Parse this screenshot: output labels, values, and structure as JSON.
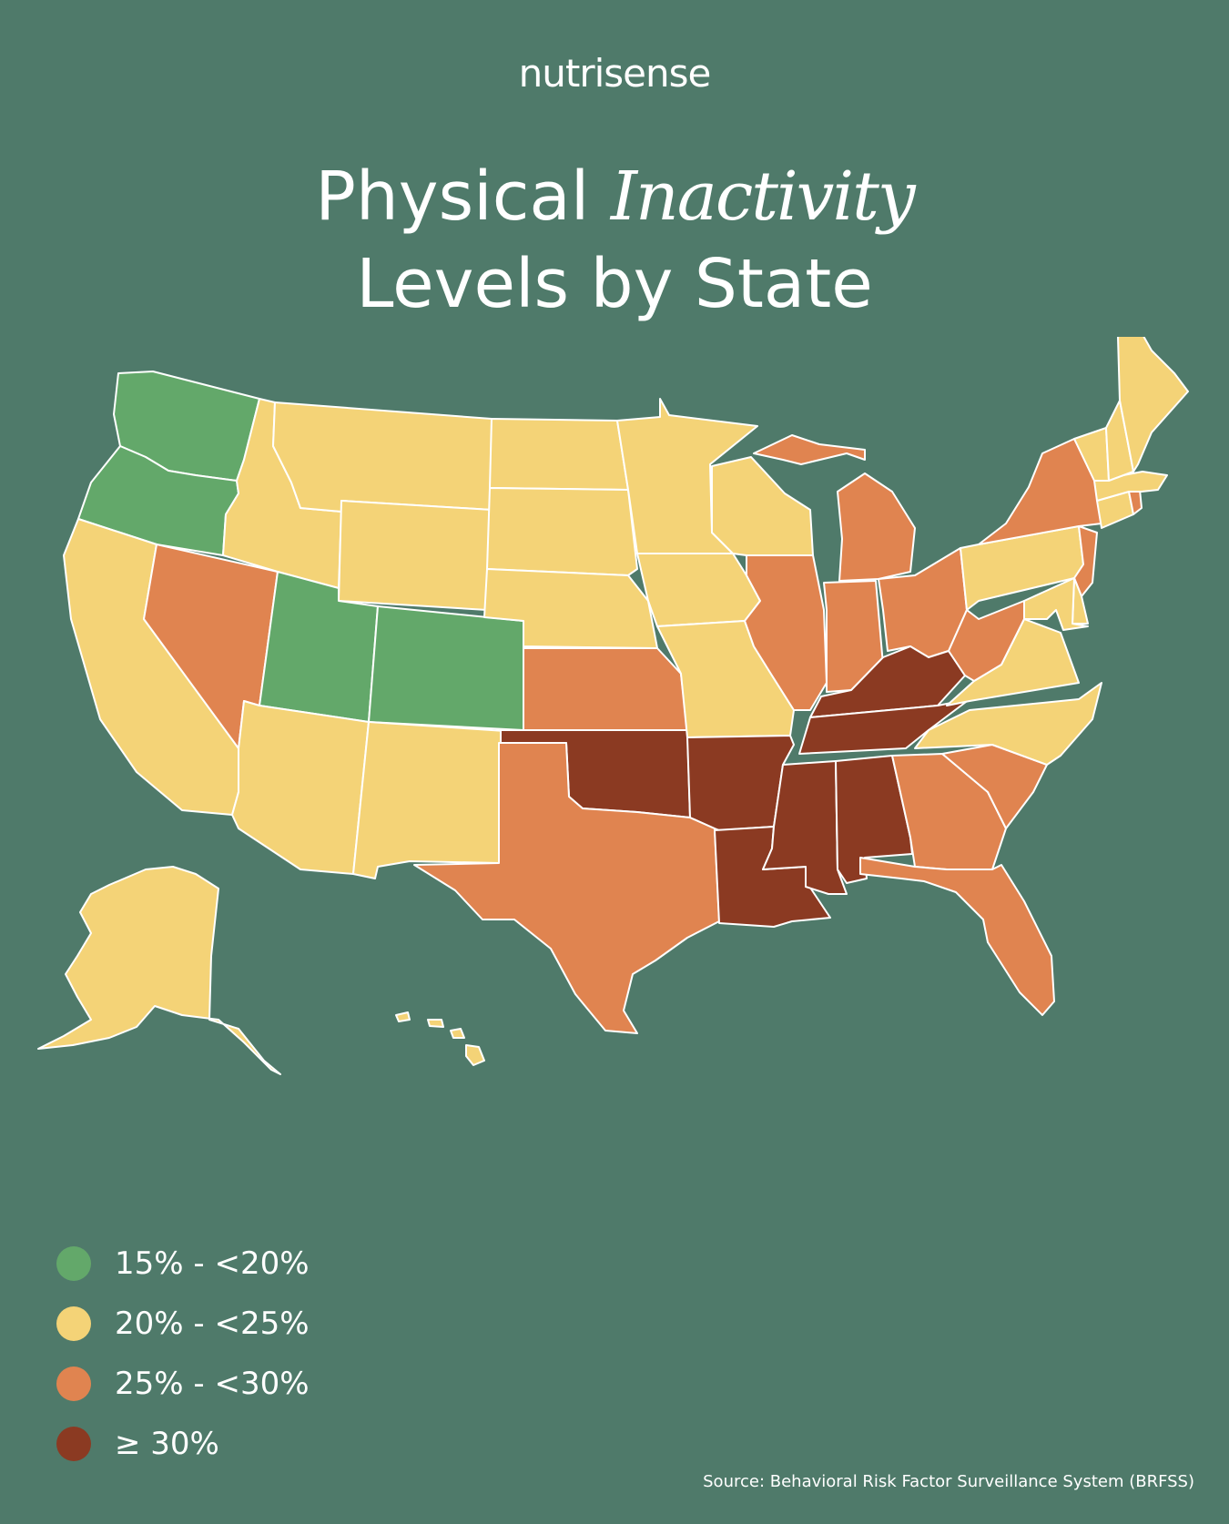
{
  "brand": "nutrisense",
  "title": {
    "line1_before": "Physical ",
    "line1_emph": "Inactivity",
    "line2": "Levels by State"
  },
  "colors": {
    "background": "#4f7a6a",
    "low": "#63a86a",
    "mid": "#f4d377",
    "high": "#e08450",
    "very_high": "#8b3a22",
    "border": "#ffffff"
  },
  "legend": [
    {
      "label": "15% - <20%",
      "color": "#63a86a"
    },
    {
      "label": "20% - <25%",
      "color": "#f4d377"
    },
    {
      "label": "25% - <30%",
      "color": "#e08450"
    },
    {
      "label": "≥ 30%",
      "color": "#8b3a22"
    }
  ],
  "state_classes": {
    "WA": "low",
    "OR": "low",
    "UT": "low",
    "CO": "low",
    "CA": "mid",
    "ID": "mid",
    "MT": "mid",
    "WY": "mid",
    "ND": "mid",
    "SD": "mid",
    "NE": "mid",
    "MN": "mid",
    "IA": "mid",
    "WI": "mid",
    "MO": "mid",
    "AZ": "mid",
    "NM": "mid",
    "PA": "mid",
    "VA": "mid",
    "NC": "mid",
    "VT": "mid",
    "NH": "mid",
    "ME": "mid",
    "MA": "mid",
    "CT": "mid",
    "MD": "mid",
    "DE": "mid",
    "AK": "mid",
    "HI": "mid",
    "NV": "high",
    "KS": "high",
    "TX": "high",
    "IL": "high",
    "IN": "high",
    "MI": "high",
    "OH": "high",
    "WV": "high",
    "NY": "high",
    "NJ": "high",
    "RI": "high",
    "SC": "high",
    "GA": "high",
    "FL": "high",
    "OK": "very_high",
    "AR": "very_high",
    "LA": "very_high",
    "MS": "very_high",
    "AL": "very_high",
    "TN": "very_high",
    "KY": "very_high"
  },
  "source": "Source: Behavioral Risk Factor Surveillance System (BRFSS)"
}
